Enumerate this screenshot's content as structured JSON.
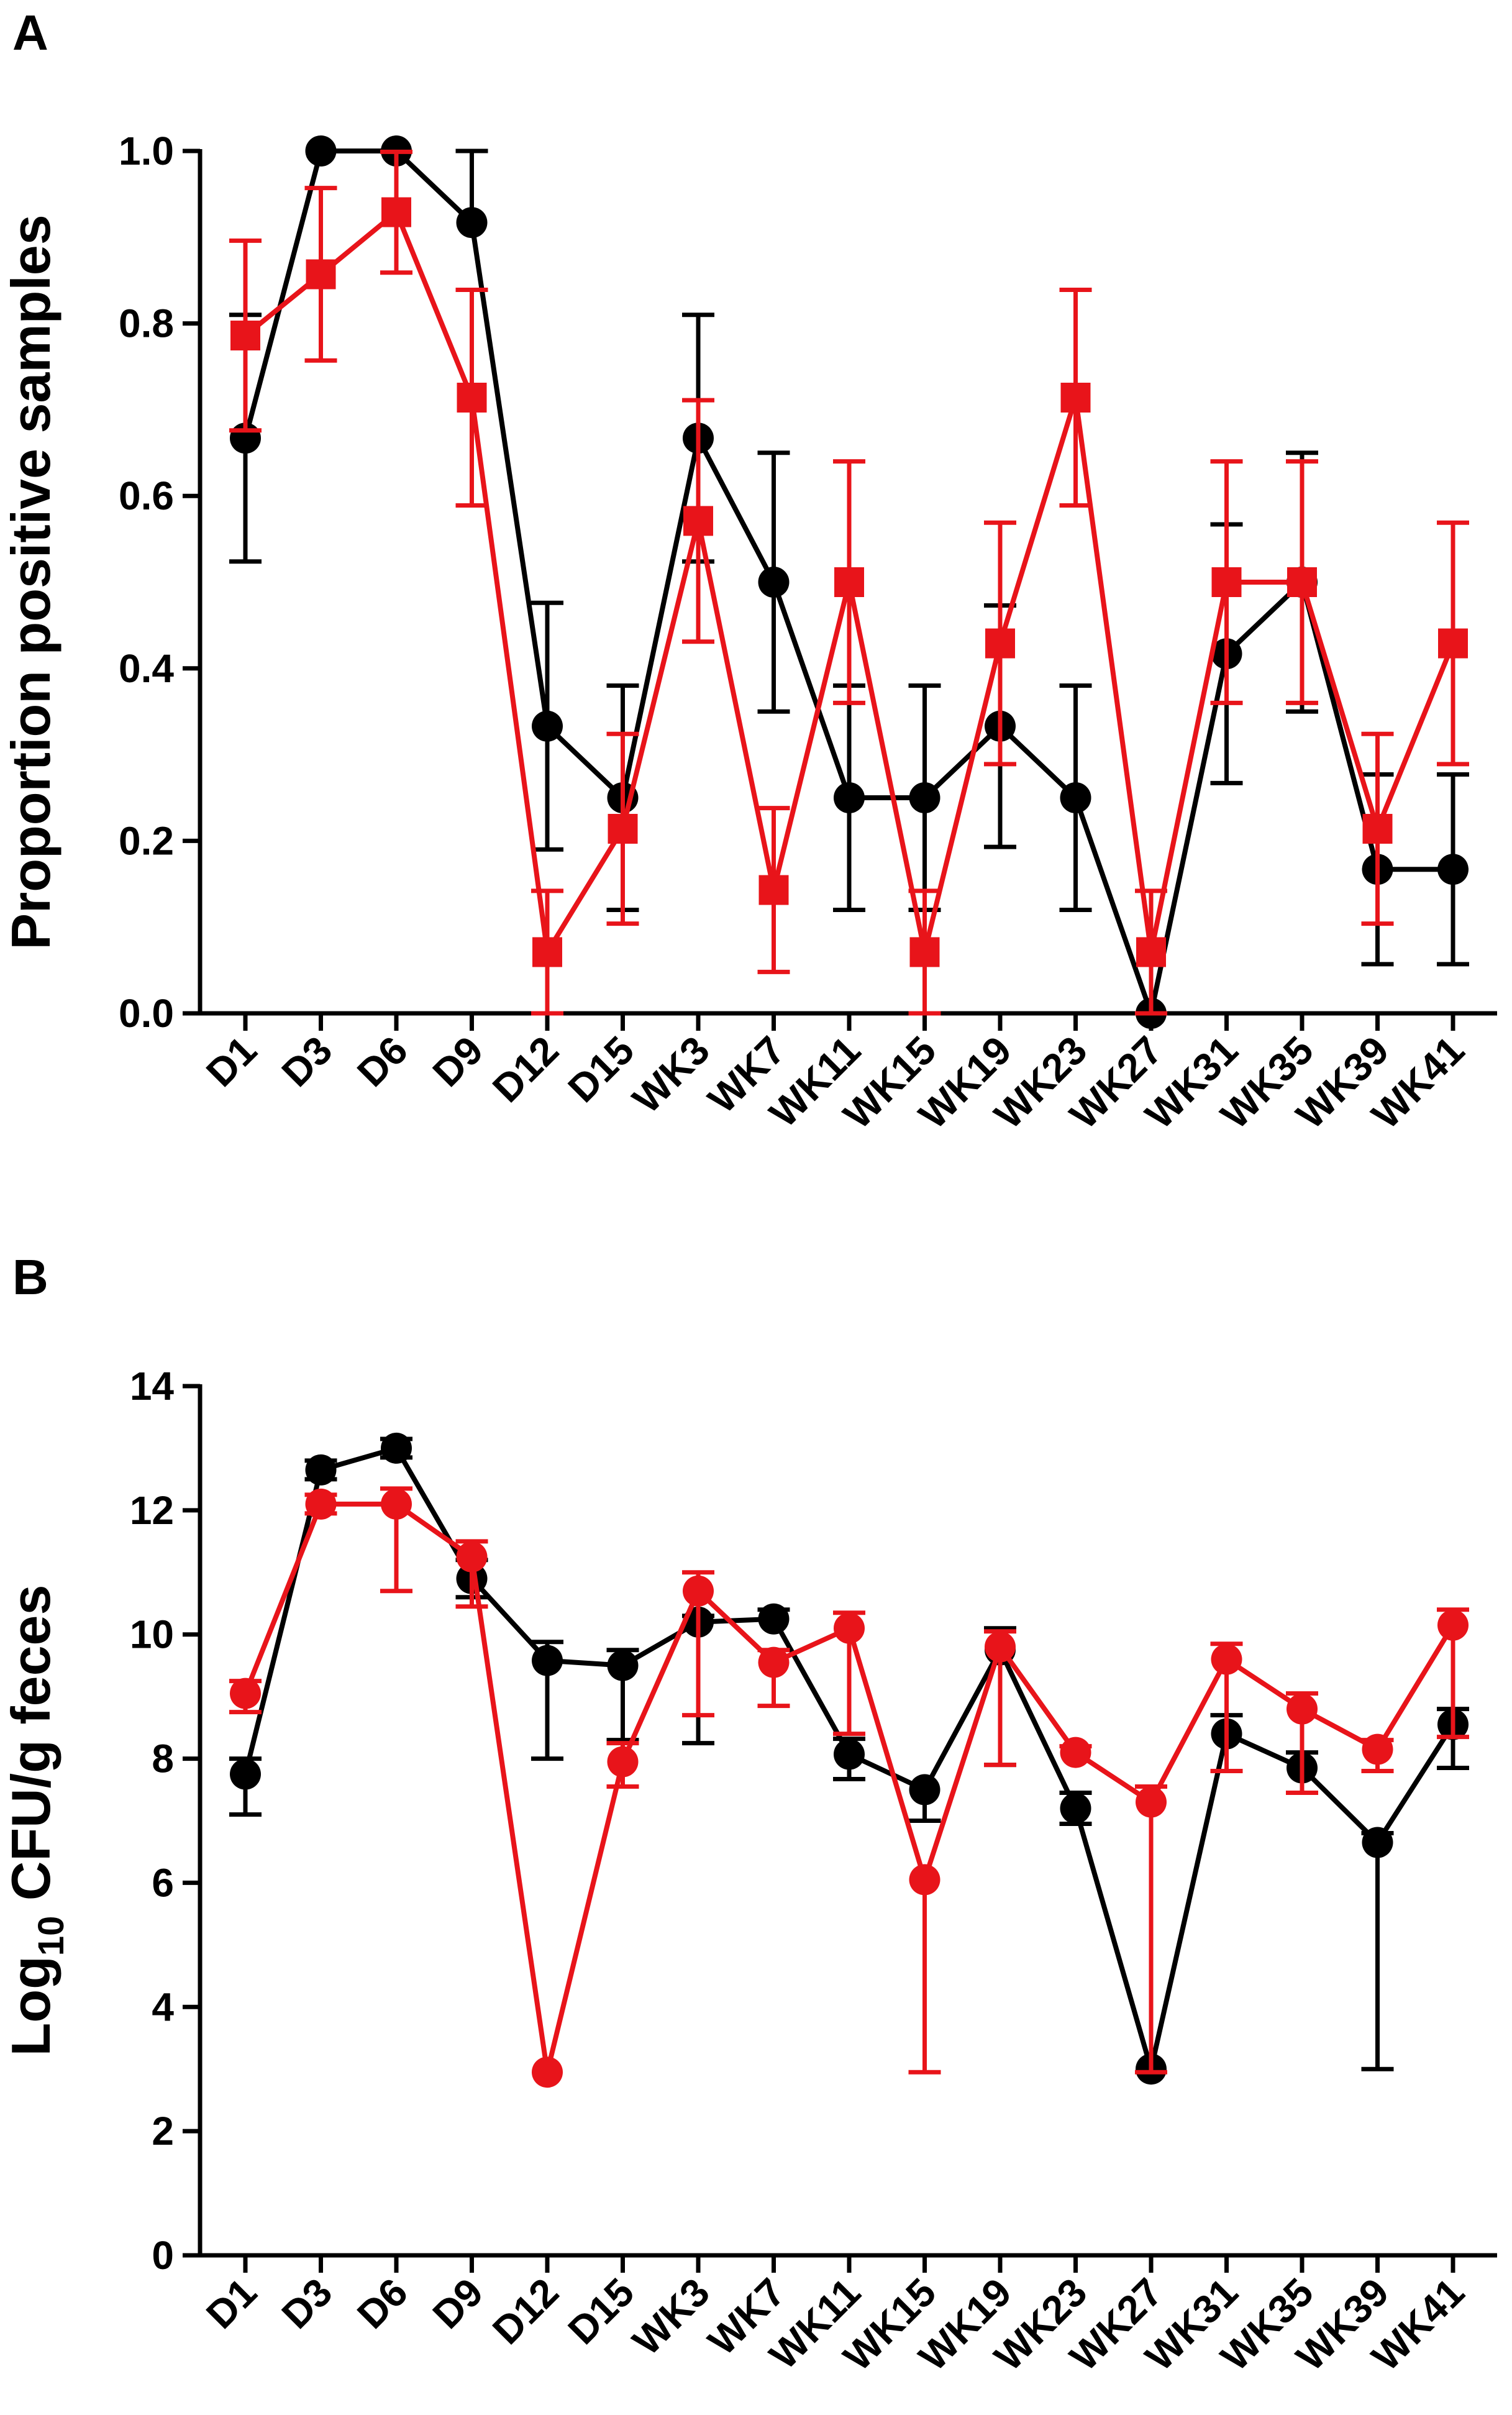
{
  "chart_data": [
    {
      "panel": "A",
      "type": "line",
      "title": "",
      "xlabel": "",
      "ylabel": "Proportion positive samples",
      "ylim": [
        0,
        1.0
      ],
      "yticks": [
        "0.0",
        "0.2",
        "0.4",
        "0.6",
        "0.8",
        "1.0"
      ],
      "yticks_num": [
        0,
        0.2,
        0.4,
        0.6,
        0.8,
        1.0
      ],
      "categories": [
        "D1",
        "D3",
        "D6",
        "D9",
        "D12",
        "D15",
        "WK3",
        "WK7",
        "WK11",
        "WK15",
        "WK19",
        "WK23",
        "WK27",
        "WK31",
        "WK35",
        "WK39",
        "WK41"
      ],
      "series": [
        {
          "name": "black-circles",
          "color": "#000000",
          "marker": "circle",
          "values": [
            0.667,
            1.0,
            1.0,
            0.917,
            0.333,
            0.25,
            0.667,
            0.5,
            0.25,
            0.25,
            0.333,
            0.25,
            0.0,
            0.417,
            0.5,
            0.167,
            0.167
          ],
          "err_low": [
            0.143,
            0,
            0,
            0,
            0.143,
            0.13,
            0.143,
            0.15,
            0.13,
            0.13,
            0.14,
            0.13,
            0,
            0.15,
            0.15,
            0.11,
            0.11
          ],
          "err_high": [
            0.143,
            0,
            0,
            0.083,
            0.143,
            0.13,
            0.143,
            0.15,
            0.13,
            0.13,
            0.14,
            0.13,
            0,
            0.15,
            0.15,
            0.11,
            0.11
          ]
        },
        {
          "name": "red-squares",
          "color": "#e8141a",
          "marker": "square",
          "values": [
            0.786,
            0.857,
            0.929,
            0.714,
            0.071,
            0.214,
            0.571,
            0.143,
            0.5,
            0.071,
            0.429,
            0.714,
            0.071,
            0.5,
            0.5,
            0.214,
            0.429
          ],
          "err_low": [
            0.11,
            0.1,
            0.07,
            0.125,
            0.071,
            0.11,
            0.14,
            0.095,
            0.14,
            0.071,
            0.14,
            0.125,
            0.071,
            0.14,
            0.14,
            0.11,
            0.14
          ],
          "err_high": [
            0.11,
            0.1,
            0.07,
            0.125,
            0.071,
            0.11,
            0.14,
            0.095,
            0.14,
            0.071,
            0.14,
            0.125,
            0.071,
            0.14,
            0.14,
            0.11,
            0.14
          ]
        }
      ]
    },
    {
      "panel": "B",
      "type": "line",
      "title": "",
      "xlabel": "",
      "ylabel": "Log10 CFU/g feces",
      "ylabel_parts": {
        "pre": "Log",
        "sub": "10",
        "post": " CFU/g feces"
      },
      "ylim": [
        0,
        14
      ],
      "yticks": [
        "0",
        "2",
        "4",
        "6",
        "8",
        "10",
        "12",
        "14"
      ],
      "yticks_num": [
        0,
        2,
        4,
        6,
        8,
        10,
        12,
        14
      ],
      "categories": [
        "D1",
        "D3",
        "D6",
        "D9",
        "D12",
        "D15",
        "WK3",
        "WK7",
        "WK11",
        "WK15",
        "WK19",
        "WK23",
        "WK27",
        "WK31",
        "WK35",
        "WK39",
        "WK41"
      ],
      "series": [
        {
          "name": "black-circles",
          "color": "#000000",
          "marker": "circle",
          "values": [
            7.75,
            12.65,
            13.0,
            10.9,
            9.58,
            9.5,
            10.2,
            10.25,
            8.07,
            7.5,
            9.75,
            7.2,
            3.0,
            8.4,
            7.85,
            6.65,
            8.55
          ],
          "err_low": [
            0.65,
            0.15,
            0.15,
            0.3,
            1.58,
            1.2,
            1.95,
            0,
            0.4,
            0.5,
            1.85,
            0.25,
            0,
            0.6,
            0.4,
            3.65,
            0.7
          ],
          "err_high": [
            0.25,
            0.15,
            0.15,
            0.3,
            0.3,
            0.25,
            0.1,
            0.15,
            0.25,
            0,
            0.35,
            0.25,
            0,
            0.3,
            0.25,
            0.15,
            0.25
          ]
        },
        {
          "name": "red-circles",
          "color": "#e8141a",
          "marker": "circle",
          "values": [
            9.05,
            12.1,
            12.1,
            11.25,
            2.95,
            7.95,
            10.7,
            9.55,
            10.1,
            6.05,
            9.8,
            8.1,
            7.3,
            9.6,
            8.8,
            8.15,
            10.15
          ],
          "err_low": [
            0.3,
            0.15,
            1.4,
            0.8,
            0,
            0.4,
            2.0,
            0.7,
            1.7,
            3.1,
            1.9,
            0,
            4.35,
            1.8,
            1.35,
            0.35,
            1.8
          ],
          "err_high": [
            0.2,
            0.15,
            0.25,
            0.25,
            0,
            0.3,
            0.3,
            0.2,
            0.25,
            0,
            0.25,
            0.1,
            0.25,
            0.25,
            0.25,
            0.15,
            0.25
          ]
        }
      ]
    }
  ]
}
